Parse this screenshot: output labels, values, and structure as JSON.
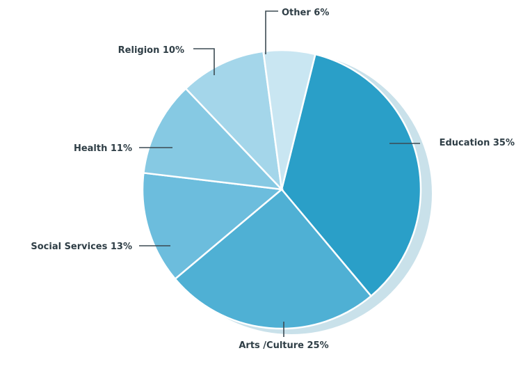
{
  "chart_data": {
    "type": "pie",
    "title": "",
    "slices": [
      {
        "label": "Education 35%",
        "value": 35,
        "color": "#2a9fc8"
      },
      {
        "label": "Arts /Culture 25%",
        "value": 25,
        "color": "#4fb0d4"
      },
      {
        "label": "Social Services 13%",
        "value": 13,
        "color": "#6cbddd"
      },
      {
        "label": "Health 11%",
        "value": 11,
        "color": "#86c9e3"
      },
      {
        "label": "Religion 10%",
        "value": 10,
        "color": "#a4d6ea"
      },
      {
        "label": "Other 6%",
        "value": 6,
        "color": "#c9e6f2"
      }
    ],
    "legend": "none",
    "shading_color": "#9cc9d9"
  }
}
